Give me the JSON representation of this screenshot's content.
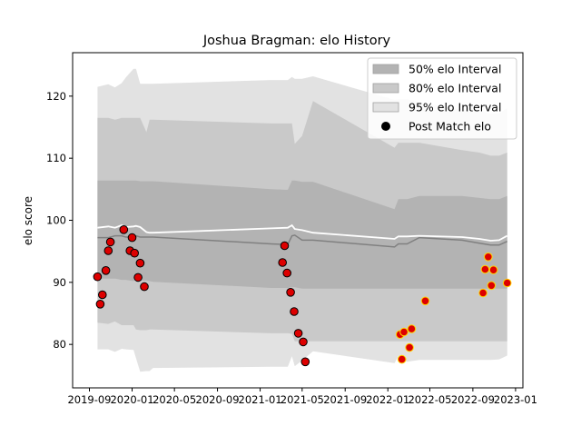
{
  "chart_data": {
    "type": "scatter",
    "title": "Joshua Bragman: elo History",
    "xlabel": "",
    "ylabel": "elo score",
    "xlim": [
      "2019-07-15",
      "2023-01-22"
    ],
    "ylim": [
      73.0,
      127.0
    ],
    "x_ticks": [
      "2019-09",
      "2020-01",
      "2020-05",
      "2020-09",
      "2021-01",
      "2021-05",
      "2021-09",
      "2022-01",
      "2022-05",
      "2022-09",
      "2023-01"
    ],
    "x_tick_dates": [
      "2019-09-01",
      "2020-01-01",
      "2020-05-01",
      "2020-09-01",
      "2021-01-01",
      "2021-05-01",
      "2021-09-01",
      "2022-01-01",
      "2022-05-01",
      "2022-09-01",
      "2023-01-01"
    ],
    "y_ticks": [
      80,
      90,
      100,
      110,
      120
    ],
    "grid": false,
    "legend_position": "top-right",
    "legend": [
      {
        "label": "50% elo Interval",
        "kind": "patch",
        "color": "#b3b3b3"
      },
      {
        "label": "80% elo Interval",
        "kind": "patch",
        "color": "#c9c9c9"
      },
      {
        "label": "95% elo Interval",
        "kind": "patch",
        "color": "#e2e2e2"
      },
      {
        "label": "Post Match elo",
        "kind": "marker",
        "color": "#000000"
      }
    ],
    "colors": {
      "band50": "#b3b3b3",
      "band80": "#c9c9c9",
      "band95": "#e2e2e2",
      "mean_line": "#ffffff",
      "median_line": "#808080",
      "point_fill": "#dd0000",
      "point_edge_early": "#000000",
      "point_edge_late": "#ffd700",
      "point_fill_late": "#dd0000"
    },
    "bands": {
      "x": [
        "2019-09-24",
        "2019-10-25",
        "2019-11-13",
        "2019-12-02",
        "2019-12-14",
        "2020-01-05",
        "2020-01-12",
        "2020-01-24",
        "2020-02-11",
        "2020-02-20",
        "2020-03-01",
        "2021-02-01",
        "2021-03-21",
        "2021-04-02",
        "2021-04-10",
        "2021-05-01",
        "2021-06-01",
        "2022-01-20",
        "2022-01-31",
        "2022-02-25",
        "2022-04-01",
        "2022-08-01",
        "2022-09-20",
        "2022-10-22",
        "2022-11-15",
        "2022-12-08"
      ],
      "mean": [
        98.8,
        99.0,
        98.8,
        99.2,
        98.9,
        99.0,
        99.1,
        98.9,
        98.1,
        98.0,
        98.0,
        98.7,
        98.8,
        99.2,
        98.6,
        98.4,
        98.0,
        97.0,
        97.4,
        97.4,
        97.5,
        97.3,
        97.0,
        96.7,
        96.8,
        97.5
      ],
      "median": [
        97.2,
        97.2,
        97.5,
        97.5,
        97.3,
        97.3,
        97.5,
        97.3,
        97.3,
        97.3,
        97.3,
        96.2,
        96.1,
        97.5,
        97.6,
        96.8,
        96.8,
        95.7,
        96.2,
        96.2,
        97.2,
        96.8,
        96.3,
        96.0,
        96.0,
        96.6
      ],
      "p50_low": [
        90.6,
        90.6,
        90.6,
        90.4,
        90.4,
        90.2,
        90.4,
        90.3,
        90.3,
        90.2,
        90.1,
        89.1,
        89.1,
        89.2,
        89.2,
        89.0,
        89.0,
        89.0,
        89.0,
        89.0,
        89.0,
        89.0,
        89.0,
        89.0,
        89.0,
        89.0
      ],
      "p50_high": [
        106.4,
        106.4,
        106.4,
        106.4,
        106.4,
        106.4,
        106.4,
        106.3,
        106.3,
        106.3,
        106.3,
        105.0,
        104.9,
        106.4,
        106.4,
        106.2,
        106.2,
        101.8,
        103.4,
        103.4,
        103.9,
        103.9,
        103.6,
        103.4,
        103.4,
        103.9
      ],
      "p80_low": [
        83.5,
        83.3,
        83.7,
        83.1,
        83.1,
        83.1,
        82.4,
        82.3,
        82.3,
        82.4,
        82.4,
        81.8,
        81.8,
        81.7,
        80.5,
        80.5,
        80.5,
        80.5,
        80.5,
        80.5,
        80.5,
        80.5,
        80.5,
        80.5,
        80.5,
        80.5
      ],
      "p80_high": [
        116.5,
        116.5,
        116.2,
        116.5,
        116.5,
        116.5,
        116.5,
        116.5,
        114.2,
        116.2,
        116.2,
        115.6,
        115.6,
        115.6,
        112.3,
        113.6,
        119.2,
        111.7,
        112.5,
        112.5,
        112.5,
        111.3,
        110.9,
        110.4,
        110.4,
        110.9
      ],
      "p95_low": [
        79.2,
        79.2,
        78.8,
        79.3,
        79.2,
        79.1,
        77.8,
        75.6,
        75.7,
        75.7,
        76.2,
        76.4,
        76.4,
        78.1,
        76.5,
        77.4,
        78.9,
        77.0,
        78.1,
        77.2,
        77.5,
        77.5,
        77.5,
        77.5,
        77.6,
        78.2
      ],
      "p95_high": [
        121.5,
        121.9,
        121.4,
        122.1,
        123.0,
        124.4,
        124.4,
        122.0,
        122.0,
        122.0,
        122.0,
        122.6,
        122.6,
        123.1,
        122.8,
        122.8,
        123.2,
        119.4,
        119.5,
        119.5,
        119.0,
        117.8,
        117.7,
        117.2,
        117.2,
        118.1
      ]
    },
    "series": [
      {
        "name": "Post Match elo",
        "points": [
          {
            "x": "2019-09-24",
            "y": 90.9,
            "edge": "black"
          },
          {
            "x": "2019-10-02",
            "y": 86.5,
            "edge": "black"
          },
          {
            "x": "2019-10-08",
            "y": 88.0,
            "edge": "black"
          },
          {
            "x": "2019-10-18",
            "y": 91.9,
            "edge": "black"
          },
          {
            "x": "2019-10-25",
            "y": 95.1,
            "edge": "black"
          },
          {
            "x": "2019-10-31",
            "y": 96.5,
            "edge": "black"
          },
          {
            "x": "2019-12-08",
            "y": 98.5,
            "edge": "black"
          },
          {
            "x": "2019-12-26",
            "y": 95.1,
            "edge": "black"
          },
          {
            "x": "2020-01-01",
            "y": 97.2,
            "edge": "black"
          },
          {
            "x": "2020-01-08",
            "y": 94.7,
            "edge": "black"
          },
          {
            "x": "2020-01-18",
            "y": 90.8,
            "edge": "black"
          },
          {
            "x": "2020-01-24",
            "y": 93.1,
            "edge": "black"
          },
          {
            "x": "2020-02-05",
            "y": 89.3,
            "edge": "black"
          },
          {
            "x": "2021-03-06",
            "y": 93.2,
            "edge": "black"
          },
          {
            "x": "2021-03-12",
            "y": 95.9,
            "edge": "black"
          },
          {
            "x": "2021-03-19",
            "y": 91.5,
            "edge": "black"
          },
          {
            "x": "2021-03-29",
            "y": 88.4,
            "edge": "black"
          },
          {
            "x": "2021-04-08",
            "y": 85.3,
            "edge": "black"
          },
          {
            "x": "2021-04-20",
            "y": 81.8,
            "edge": "black"
          },
          {
            "x": "2021-05-04",
            "y": 80.4,
            "edge": "black"
          },
          {
            "x": "2021-05-10",
            "y": 77.2,
            "edge": "black"
          },
          {
            "x": "2022-02-05",
            "y": 81.6,
            "edge": "yellow"
          },
          {
            "x": "2022-02-10",
            "y": 77.6,
            "edge": "yellow"
          },
          {
            "x": "2022-02-16",
            "y": 82.0,
            "edge": "yellow"
          },
          {
            "x": "2022-03-04",
            "y": 79.5,
            "edge": "yellow"
          },
          {
            "x": "2022-03-10",
            "y": 82.5,
            "edge": "yellow"
          },
          {
            "x": "2022-04-18",
            "y": 87.0,
            "edge": "yellow"
          },
          {
            "x": "2022-09-30",
            "y": 88.3,
            "edge": "yellow"
          },
          {
            "x": "2022-10-06",
            "y": 92.1,
            "edge": "yellow"
          },
          {
            "x": "2022-10-15",
            "y": 94.1,
            "edge": "yellow"
          },
          {
            "x": "2022-10-24",
            "y": 89.5,
            "edge": "yellow"
          },
          {
            "x": "2022-10-30",
            "y": 92.0,
            "edge": "yellow"
          },
          {
            "x": "2022-12-08",
            "y": 89.9,
            "edge": "yellow"
          }
        ]
      }
    ]
  }
}
